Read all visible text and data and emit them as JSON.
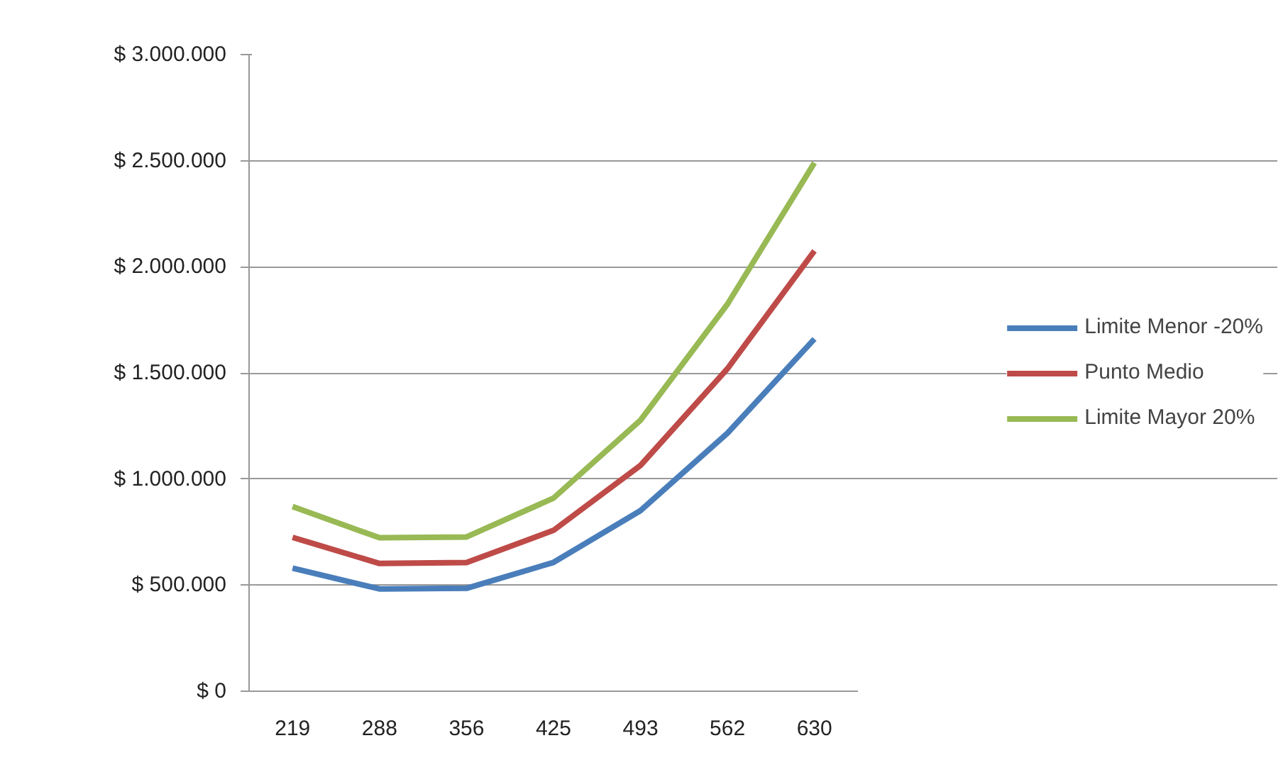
{
  "chart_data": {
    "type": "line",
    "categories": [
      "219",
      "288",
      "356",
      "425",
      "493",
      "562",
      "630"
    ],
    "series": [
      {
        "name": "Limite Menor -20%",
        "color": "#4a7ebb",
        "values": [
          580000,
          482000,
          485000,
          607000,
          851000,
          1216000,
          1660000
        ]
      },
      {
        "name": "Punto Medio",
        "color": "#be4b48",
        "values": [
          725000,
          602000,
          606000,
          758000,
          1064000,
          1520000,
          2075000
        ]
      },
      {
        "name": "Limite Mayor 20%",
        "color": "#98b954",
        "values": [
          870000,
          723000,
          727000,
          910000,
          1277000,
          1824000,
          2490000
        ]
      }
    ],
    "ylim": [
      0,
      3000000
    ],
    "yticks": [
      {
        "value": 0,
        "label": "$ 0"
      },
      {
        "value": 500000,
        "label": "$ 500.000"
      },
      {
        "value": 1000000,
        "label": "$ 1.000.000"
      },
      {
        "value": 1500000,
        "label": "$ 1.500.000"
      },
      {
        "value": 2000000,
        "label": "$ 2.000.000"
      },
      {
        "value": 2500000,
        "label": "$ 2.500.000"
      },
      {
        "value": 3000000,
        "label": "$ 3.000.000"
      }
    ],
    "grid": "y",
    "legend": "right",
    "marker": "none",
    "line_style": "solid"
  }
}
